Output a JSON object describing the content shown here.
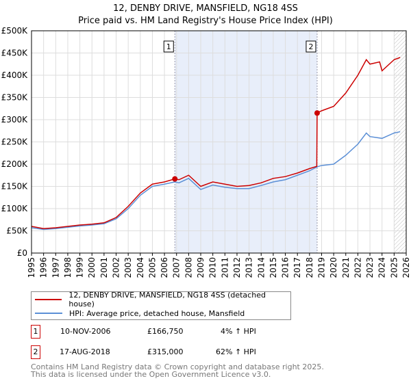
{
  "title": [
    "12, DENBY DRIVE, MANSFIELD, NG18 4SS",
    "Price paid vs. HM Land Registry's House Price Index (HPI)"
  ],
  "chart_data": {
    "type": "line",
    "title": "12, DENBY DRIVE, MANSFIELD, NG18 4SS — Price paid vs. HM Land Registry's House Price Index (HPI)",
    "xlim": [
      1995,
      2026
    ],
    "ylim": [
      0,
      500000
    ],
    "x_ticks": [
      "1995",
      "1996",
      "1997",
      "1998",
      "1999",
      "2000",
      "2001",
      "2002",
      "2003",
      "2004",
      "2005",
      "2006",
      "2007",
      "2008",
      "2009",
      "2010",
      "2011",
      "2012",
      "2013",
      "2014",
      "2015",
      "2016",
      "2017",
      "2018",
      "2019",
      "2020",
      "2021",
      "2022",
      "2023",
      "2024",
      "2025",
      "2026"
    ],
    "y_ticks": [
      {
        "v": 0,
        "label": "£0"
      },
      {
        "v": 50000,
        "label": "£50K"
      },
      {
        "v": 100000,
        "label": "£100K"
      },
      {
        "v": 150000,
        "label": "£150K"
      },
      {
        "v": 200000,
        "label": "£200K"
      },
      {
        "v": 250000,
        "label": "£250K"
      },
      {
        "v": 300000,
        "label": "£300K"
      },
      {
        "v": 350000,
        "label": "£350K"
      },
      {
        "v": 400000,
        "label": "£400K"
      },
      {
        "v": 450000,
        "label": "£450K"
      },
      {
        "v": 500000,
        "label": "£500K"
      }
    ],
    "grid": true,
    "series": [
      {
        "name": "12, DENBY DRIVE, MANSFIELD, NG18 4SS (detached house)",
        "color": "#cc0000",
        "x": [
          1995,
          1996,
          1997,
          1998,
          1999,
          2000,
          2001,
          2002,
          2003,
          2004,
          2005,
          2006,
          2006.86,
          2007.2,
          2008,
          2009,
          2010,
          2011,
          2012,
          2013,
          2014,
          2015,
          2016,
          2017,
          2018,
          2018.6,
          2018.63,
          2019,
          2020,
          2021,
          2022,
          2022.7,
          2023,
          2023.8,
          2024,
          2025,
          2025.5
        ],
        "y": [
          60000,
          55000,
          57000,
          60000,
          63000,
          65000,
          68000,
          80000,
          105000,
          135000,
          155000,
          160000,
          166750,
          165000,
          175000,
          150000,
          160000,
          155000,
          150000,
          152000,
          158000,
          168000,
          172000,
          180000,
          190000,
          195000,
          315000,
          320000,
          330000,
          360000,
          400000,
          435000,
          425000,
          430000,
          410000,
          435000,
          440000
        ]
      },
      {
        "name": "HPI: Average price, detached house, Mansfield",
        "color": "#5b8fd6",
        "x": [
          1995,
          1996,
          1997,
          1998,
          1999,
          2000,
          2001,
          2002,
          2003,
          2004,
          2005,
          2006,
          2006.86,
          2007.2,
          2008,
          2009,
          2010,
          2011,
          2012,
          2013,
          2014,
          2015,
          2016,
          2017,
          2018,
          2018.63,
          2019,
          2020,
          2021,
          2022,
          2022.7,
          2023,
          2024,
          2025,
          2025.5
        ],
        "y": [
          57000,
          53000,
          55000,
          58000,
          61000,
          63000,
          66000,
          77000,
          100000,
          130000,
          150000,
          155000,
          160000,
          158000,
          168000,
          143000,
          153000,
          148000,
          145000,
          145000,
          152000,
          160000,
          165000,
          175000,
          185000,
          194000,
          197000,
          200000,
          220000,
          245000,
          270000,
          262000,
          258000,
          270000,
          273000
        ]
      }
    ],
    "annotations": [
      {
        "label": "1",
        "x": 2006.86
      },
      {
        "label": "2",
        "x": 2018.63
      }
    ]
  },
  "legend": [
    "12, DENBY DRIVE, MANSFIELD, NG18 4SS (detached house)",
    "HPI: Average price, detached house, Mansfield"
  ],
  "sales": [
    {
      "num": "1",
      "date": "10-NOV-2006",
      "price": "£166,750",
      "hpi": "4% ↑ HPI"
    },
    {
      "num": "2",
      "date": "17-AUG-2018",
      "price": "£315,000",
      "hpi": "62% ↑ HPI"
    }
  ],
  "footer": [
    "Contains HM Land Registry data © Crown copyright and database right 2025.",
    "This data is licensed under the Open Government Licence v3.0."
  ]
}
